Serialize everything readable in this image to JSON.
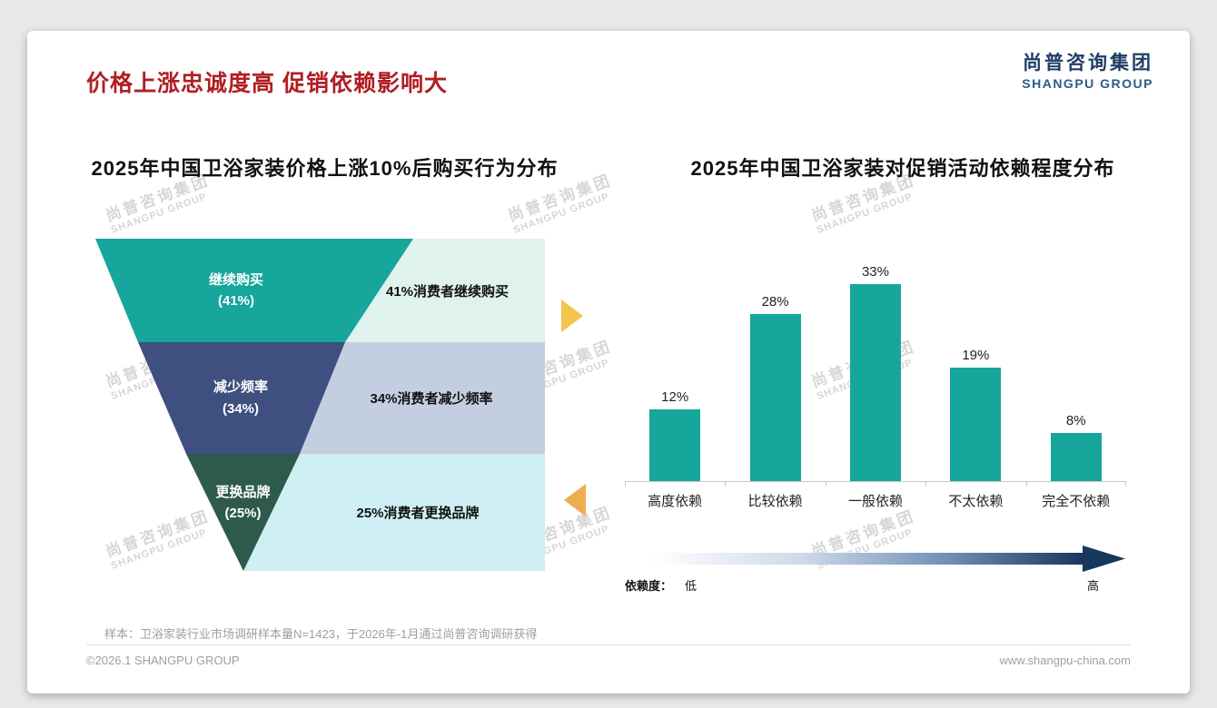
{
  "page": {
    "title": "价格上涨忠诚度高 促销依赖影响大",
    "title_color": "#B01E23",
    "logo": {
      "cn": "尚普咨询集团",
      "en": "SHANGPU GROUP"
    },
    "watermark": {
      "cn": "尚普咨询集团",
      "en": "SHANGPU GROUP"
    },
    "footnote": "样本：卫浴家装行业市场调研样本量N=1423，于2026年-1月通过尚普咨询调研获得",
    "copyright": "©2026.1 SHANGPU GROUP",
    "website": "www.shangpu-china.com",
    "accent_arrows": {
      "right": "#F2C64B",
      "left": "#EDAF4E"
    }
  },
  "chart_data": [
    {
      "type": "funnel",
      "title": "2025年中国卫浴家装价格上涨10%后购买行为分布",
      "categories": [
        "继续购买",
        "减少频率",
        "更换品牌"
      ],
      "values": [
        41,
        34,
        25
      ],
      "value_labels": [
        "(41%)",
        "(34%)",
        "(25%)"
      ],
      "annotations": [
        "41%消费者继续购买",
        "34%消费者减少频率",
        "25%消费者更换品牌"
      ],
      "level_colors": [
        "#16A69C",
        "#3E4F80",
        "#2E5A4C"
      ],
      "annotation_colors": [
        "#DFF2EE",
        "#C4CEE1",
        "#CEEFF4"
      ]
    },
    {
      "type": "bar",
      "title": "2025年中国卫浴家装对促销活动依赖程度分布",
      "categories": [
        "高度依赖",
        "比较依赖",
        "一般依赖",
        "不太依赖",
        "完全不依赖"
      ],
      "values": [
        12,
        28,
        33,
        19,
        8
      ],
      "value_suffix": "%",
      "bar_color": "#16A69C",
      "ylim": [
        0,
        35
      ],
      "grid": false,
      "legend_position": "none",
      "dependency_axis": {
        "label": "依赖度：",
        "low": "低",
        "high": "高",
        "gradient": [
          "#ffffff",
          "#cdd9e9",
          "#6c8cb4",
          "#17375e"
        ]
      }
    }
  ]
}
